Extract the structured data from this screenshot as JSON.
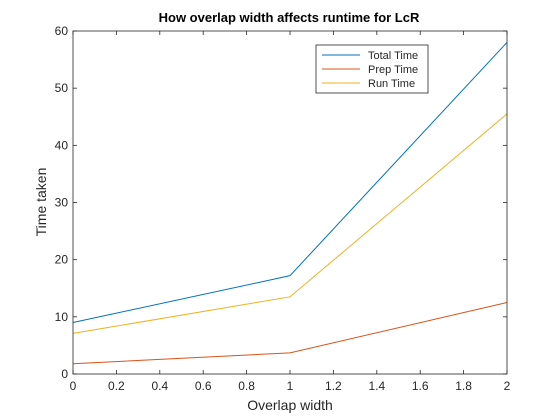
{
  "chart_data": {
    "type": "line",
    "title": "How overlap width affects runtime for LcR",
    "xlabel": "Overlap width",
    "ylabel": "Time taken",
    "x": [
      0,
      1,
      2
    ],
    "xlim": [
      0,
      2
    ],
    "ylim": [
      0,
      60
    ],
    "xticks": [
      0,
      0.2,
      0.4,
      0.6,
      0.8,
      1,
      1.2,
      1.4,
      1.6,
      1.8,
      2
    ],
    "xtick_labels": [
      "0",
      "0.2",
      "0.4",
      "0.6",
      "0.8",
      "1",
      "1.2",
      "1.4",
      "1.6",
      "1.8",
      "2"
    ],
    "yticks": [
      0,
      10,
      20,
      30,
      40,
      50,
      60
    ],
    "ytick_labels": [
      "0",
      "10",
      "20",
      "30",
      "40",
      "50",
      "60"
    ],
    "grid": false,
    "legend_position": "top-right",
    "series": [
      {
        "name": "Total Time",
        "values": [
          9.0,
          17.2,
          58.0
        ],
        "color": "#0072BD"
      },
      {
        "name": "Prep Time",
        "values": [
          1.8,
          3.7,
          12.5
        ],
        "color": "#D95319"
      },
      {
        "name": "Run Time",
        "values": [
          7.1,
          13.5,
          45.5
        ],
        "color": "#EDB120"
      }
    ]
  }
}
